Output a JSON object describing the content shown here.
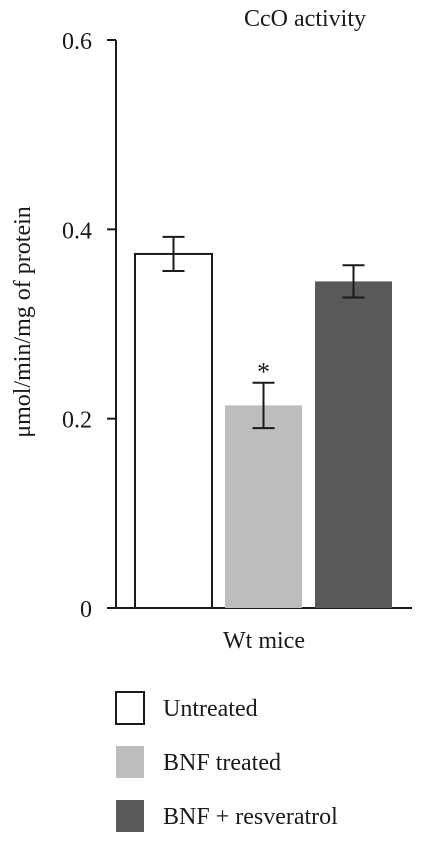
{
  "chart_data": {
    "type": "bar",
    "title": "CcO activity",
    "ylabel": "μmol/min/mg of protein",
    "xlabel": "Wt mice",
    "ylim": [
      0,
      0.6
    ],
    "yticks": [
      {
        "value": 0,
        "label": "0"
      },
      {
        "value": 0.2,
        "label": "0.2"
      },
      {
        "value": 0.4,
        "label": "0.4"
      },
      {
        "value": 0.6,
        "label": "0.6"
      }
    ],
    "grid": false,
    "legend_position": "bottom",
    "series": [
      {
        "name": "Untreated",
        "value": 0.374,
        "error": 0.018,
        "color": "#ffffff",
        "annotation": ""
      },
      {
        "name": "BNF treated",
        "value": 0.214,
        "error": 0.024,
        "color": "#bdbdbd",
        "annotation": "*"
      },
      {
        "name": "BNF + resveratrol",
        "value": 0.345,
        "error": 0.017,
        "color": "#595959",
        "annotation": ""
      }
    ]
  }
}
